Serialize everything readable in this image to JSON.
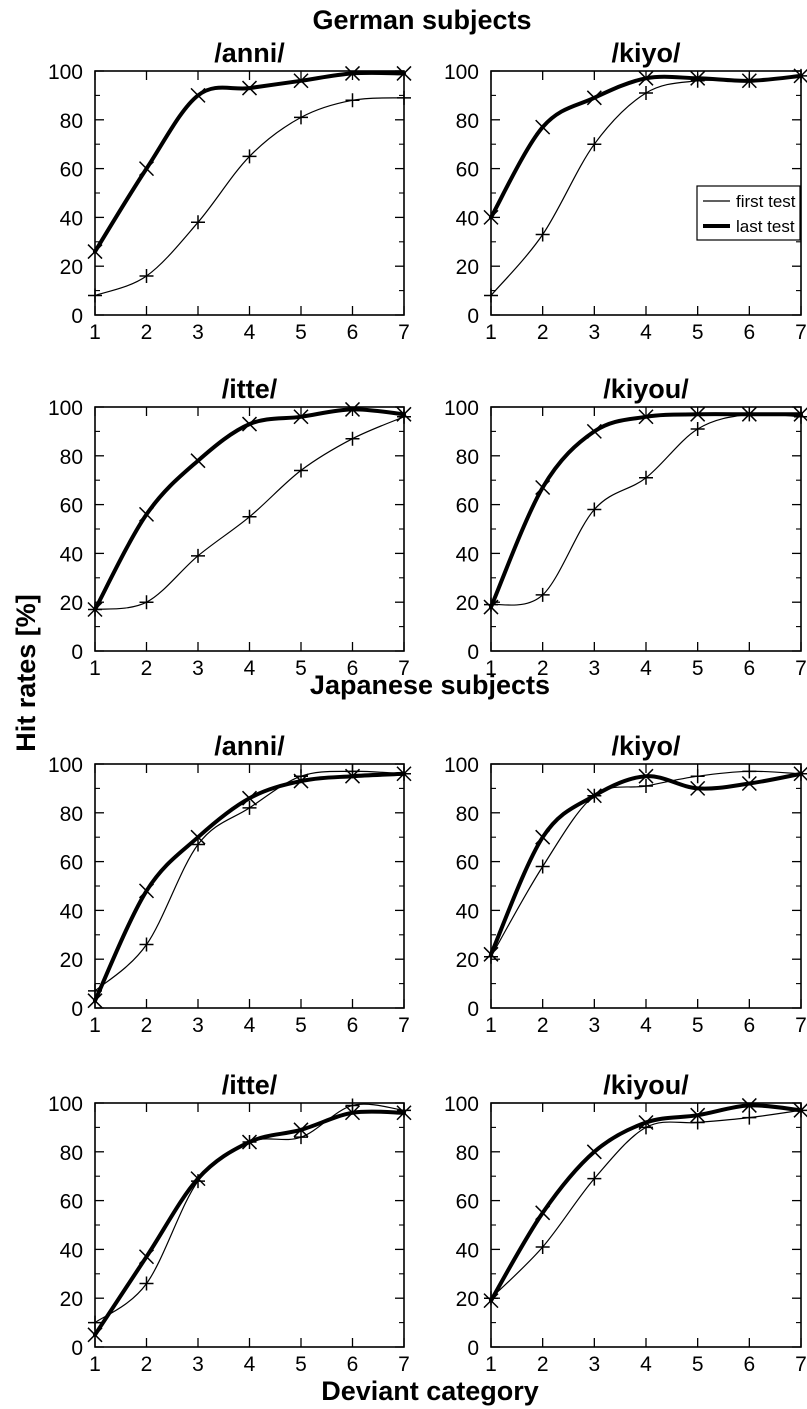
{
  "figure": {
    "ylabel": "Hit rates [%]",
    "xlabel": "Deviant category",
    "legend": {
      "placement": "inside panel /kiyo/ (German subjects), right",
      "entries": [
        {
          "key": "first",
          "label": "first test"
        },
        {
          "key": "last",
          "label": "last test"
        }
      ]
    }
  },
  "chart_data": [
    {
      "type": "scatter",
      "group": "German subjects",
      "title": "/anni/",
      "x": [
        1,
        2,
        3,
        4,
        5,
        6,
        7
      ],
      "xlim": [
        1,
        7
      ],
      "ylim": [
        0,
        100
      ],
      "series": [
        {
          "name": "first test",
          "values": [
            8,
            16,
            38,
            65,
            81,
            88,
            89
          ]
        },
        {
          "name": "last test",
          "values": [
            26,
            60,
            90,
            93,
            96,
            99,
            99
          ]
        }
      ]
    },
    {
      "type": "scatter",
      "group": "German subjects",
      "title": "/kiyo/",
      "x": [
        1,
        2,
        3,
        4,
        5,
        6,
        7
      ],
      "xlim": [
        1,
        7
      ],
      "ylim": [
        0,
        100
      ],
      "series": [
        {
          "name": "first test",
          "values": [
            8,
            33,
            70,
            91,
            96,
            96,
            98
          ]
        },
        {
          "name": "last test",
          "values": [
            40,
            77,
            89,
            97,
            97,
            96,
            98
          ]
        }
      ]
    },
    {
      "type": "scatter",
      "group": "German subjects",
      "title": "/itte/",
      "x": [
        1,
        2,
        3,
        4,
        5,
        6,
        7
      ],
      "xlim": [
        1,
        7
      ],
      "ylim": [
        0,
        100
      ],
      "series": [
        {
          "name": "first test",
          "values": [
            17,
            20,
            39,
            55,
            74,
            87,
            96
          ]
        },
        {
          "name": "last test",
          "values": [
            17,
            56,
            78,
            93,
            96,
            99,
            97
          ]
        }
      ]
    },
    {
      "type": "scatter",
      "group": "German subjects",
      "title": "/kiyou/",
      "x": [
        1,
        2,
        3,
        4,
        5,
        6,
        7
      ],
      "xlim": [
        1,
        7
      ],
      "ylim": [
        0,
        100
      ],
      "series": [
        {
          "name": "first test",
          "values": [
            19,
            23,
            58,
            71,
            91,
            97,
            96
          ]
        },
        {
          "name": "last test",
          "values": [
            18,
            67,
            90,
            96,
            97,
            97,
            97
          ]
        }
      ]
    },
    {
      "type": "scatter",
      "group": "Japanese subjects",
      "title": "/anni/",
      "x": [
        1,
        2,
        3,
        4,
        5,
        6,
        7
      ],
      "xlim": [
        1,
        7
      ],
      "ylim": [
        0,
        100
      ],
      "series": [
        {
          "name": "first test",
          "values": [
            7,
            26,
            67,
            82,
            95,
            97,
            96
          ]
        },
        {
          "name": "last test",
          "values": [
            3,
            48,
            70,
            86,
            93,
            95,
            96
          ]
        }
      ]
    },
    {
      "type": "scatter",
      "group": "Japanese subjects",
      "title": "/kiyo/",
      "x": [
        1,
        2,
        3,
        4,
        5,
        6,
        7
      ],
      "xlim": [
        1,
        7
      ],
      "ylim": [
        0,
        100
      ],
      "series": [
        {
          "name": "first test",
          "values": [
            21,
            58,
            87,
            91,
            95,
            97,
            96
          ]
        },
        {
          "name": "last test",
          "values": [
            22,
            70,
            87,
            95,
            90,
            92,
            96
          ]
        }
      ]
    },
    {
      "type": "scatter",
      "group": "Japanese subjects",
      "title": "/itte/",
      "x": [
        1,
        2,
        3,
        4,
        5,
        6,
        7
      ],
      "xlim": [
        1,
        7
      ],
      "ylim": [
        0,
        100
      ],
      "series": [
        {
          "name": "first test",
          "values": [
            10,
            26,
            68,
            84,
            86,
            99,
            97
          ]
        },
        {
          "name": "last test",
          "values": [
            5,
            37,
            69,
            84,
            89,
            96,
            96
          ]
        }
      ]
    },
    {
      "type": "scatter",
      "group": "Japanese subjects",
      "title": "/kiyou/",
      "x": [
        1,
        2,
        3,
        4,
        5,
        6,
        7
      ],
      "xlim": [
        1,
        7
      ],
      "ylim": [
        0,
        100
      ],
      "series": [
        {
          "name": "first test",
          "values": [
            20,
            41,
            69,
            90,
            92,
            94,
            97
          ]
        },
        {
          "name": "last test",
          "values": [
            19,
            55,
            80,
            92,
            95,
            99,
            97
          ]
        }
      ]
    }
  ]
}
